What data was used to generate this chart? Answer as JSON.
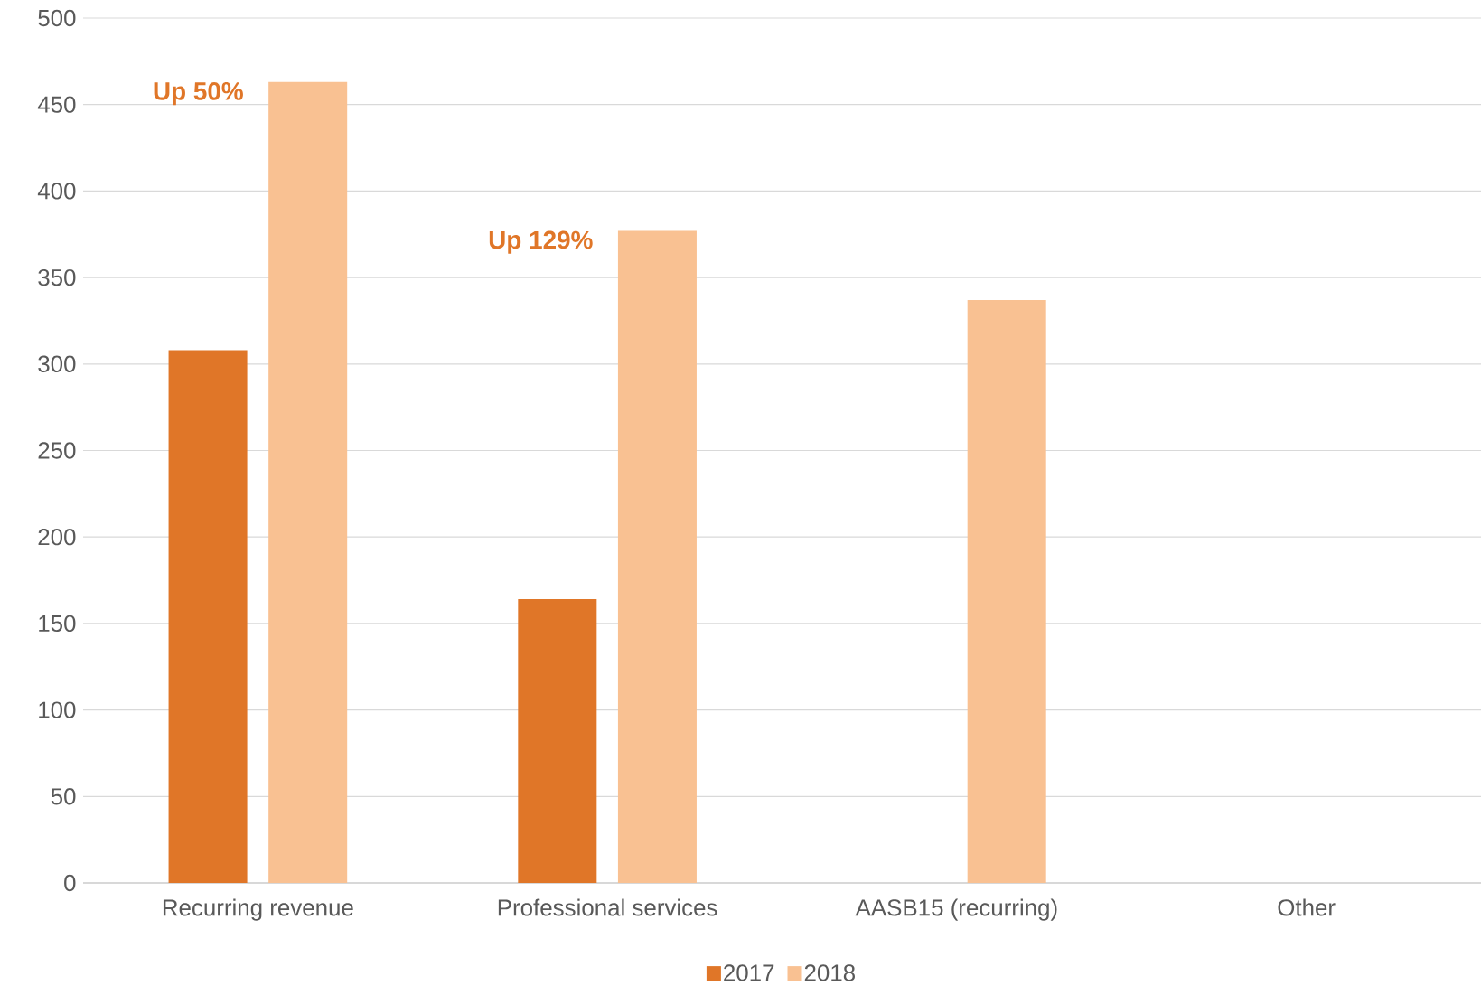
{
  "chart_data": {
    "type": "bar",
    "categories": [
      "Recurring revenue",
      "Professional services",
      "AASB15 (recurring)",
      "Other"
    ],
    "series": [
      {
        "name": "2017",
        "color": "#e07628",
        "values": [
          308,
          164,
          null,
          null
        ]
      },
      {
        "name": "2018",
        "color": "#f9c192",
        "values": [
          463,
          377,
          337,
          null
        ]
      }
    ],
    "ylim": [
      0,
      500
    ],
    "yticks": [
      0,
      50,
      100,
      150,
      200,
      250,
      300,
      350,
      400,
      450,
      500
    ],
    "grid": "y",
    "legend": "bottom",
    "annotations": [
      "**Up 50%**",
      "**Up 129%**"
    ]
  }
}
